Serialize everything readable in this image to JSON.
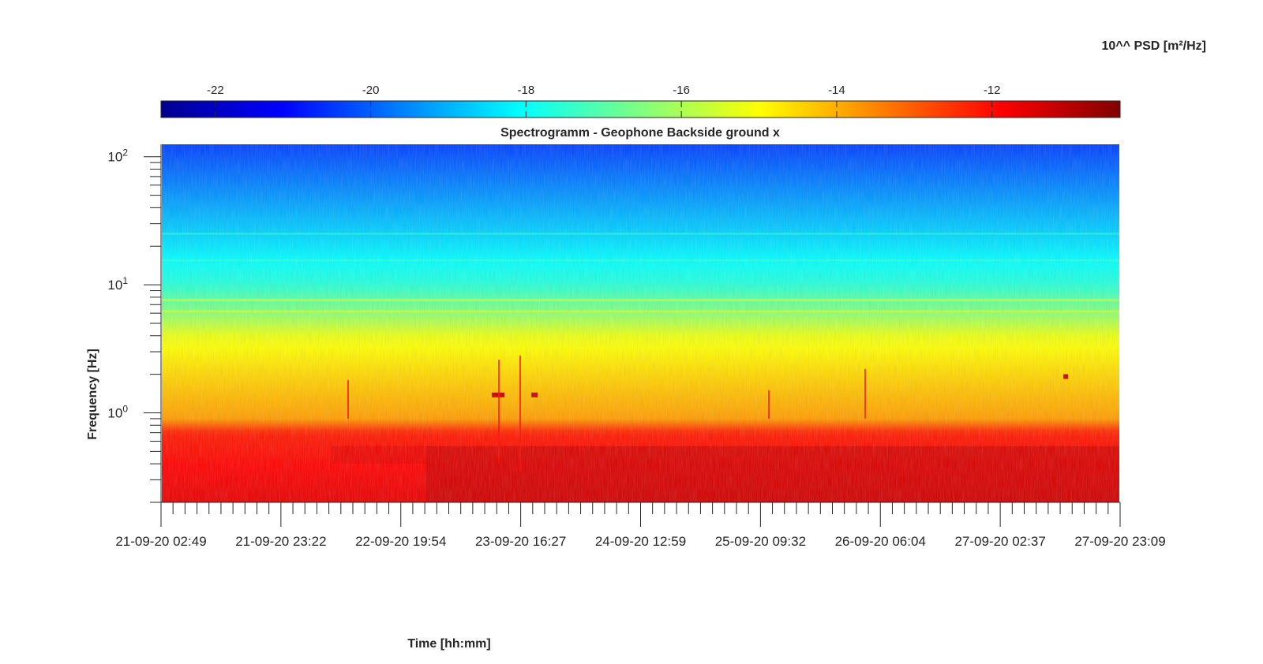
{
  "chart_data": {
    "type": "heatmap",
    "title": "Spectrogramm - Geophone Backside ground x",
    "xlabel": "Time [hh:mm]",
    "ylabel": "Frequency [Hz]",
    "colorbar_label": "10^^ PSD [m²/Hz]",
    "colormap": "jet",
    "color_range": [
      -22.7,
      -10.35
    ],
    "colorbar_ticks": [
      "-22",
      "-20",
      "-18",
      "-16",
      "-14",
      "-12"
    ],
    "colorbar_tick_values": [
      -22,
      -20,
      -18,
      -16,
      -14,
      -12
    ],
    "y_scale": "log",
    "ylim": [
      0.2,
      125
    ],
    "y_tick_values": [
      1,
      10,
      100
    ],
    "y_tick_labels": [
      {
        "base": "10",
        "exp": "0"
      },
      {
        "base": "10",
        "exp": "1"
      },
      {
        "base": "10",
        "exp": "2"
      }
    ],
    "x_ticks": [
      "21-09-20 02:49",
      "21-09-20 23:22",
      "22-09-20 19:54",
      "23-09-20 16:27",
      "24-09-20 12:59",
      "25-09-20 09:32",
      "26-09-20 06:04",
      "27-09-20 02:37",
      "27-09-20 23:09"
    ],
    "x_range": [
      "21-09-20 02:49",
      "27-09-20 23:09"
    ],
    "colormap_stops": [
      "#00008f",
      "#0000ff",
      "#00ffff",
      "#ffff00",
      "#ff0000",
      "#800000"
    ],
    "psd_profile": [
      {
        "freq": 0.2,
        "psd": -11.6
      },
      {
        "freq": 0.7,
        "psd": -12.2
      },
      {
        "freq": 0.9,
        "psd": -13.8
      },
      {
        "freq": 2.0,
        "psd": -14.5
      },
      {
        "freq": 4.0,
        "psd": -15.2
      },
      {
        "freq": 6.5,
        "psd": -16.6
      },
      {
        "freq": 10.0,
        "psd": -17.6
      },
      {
        "freq": 30.0,
        "psd": -18.8
      },
      {
        "freq": 125.0,
        "psd": -20.4
      }
    ]
  }
}
